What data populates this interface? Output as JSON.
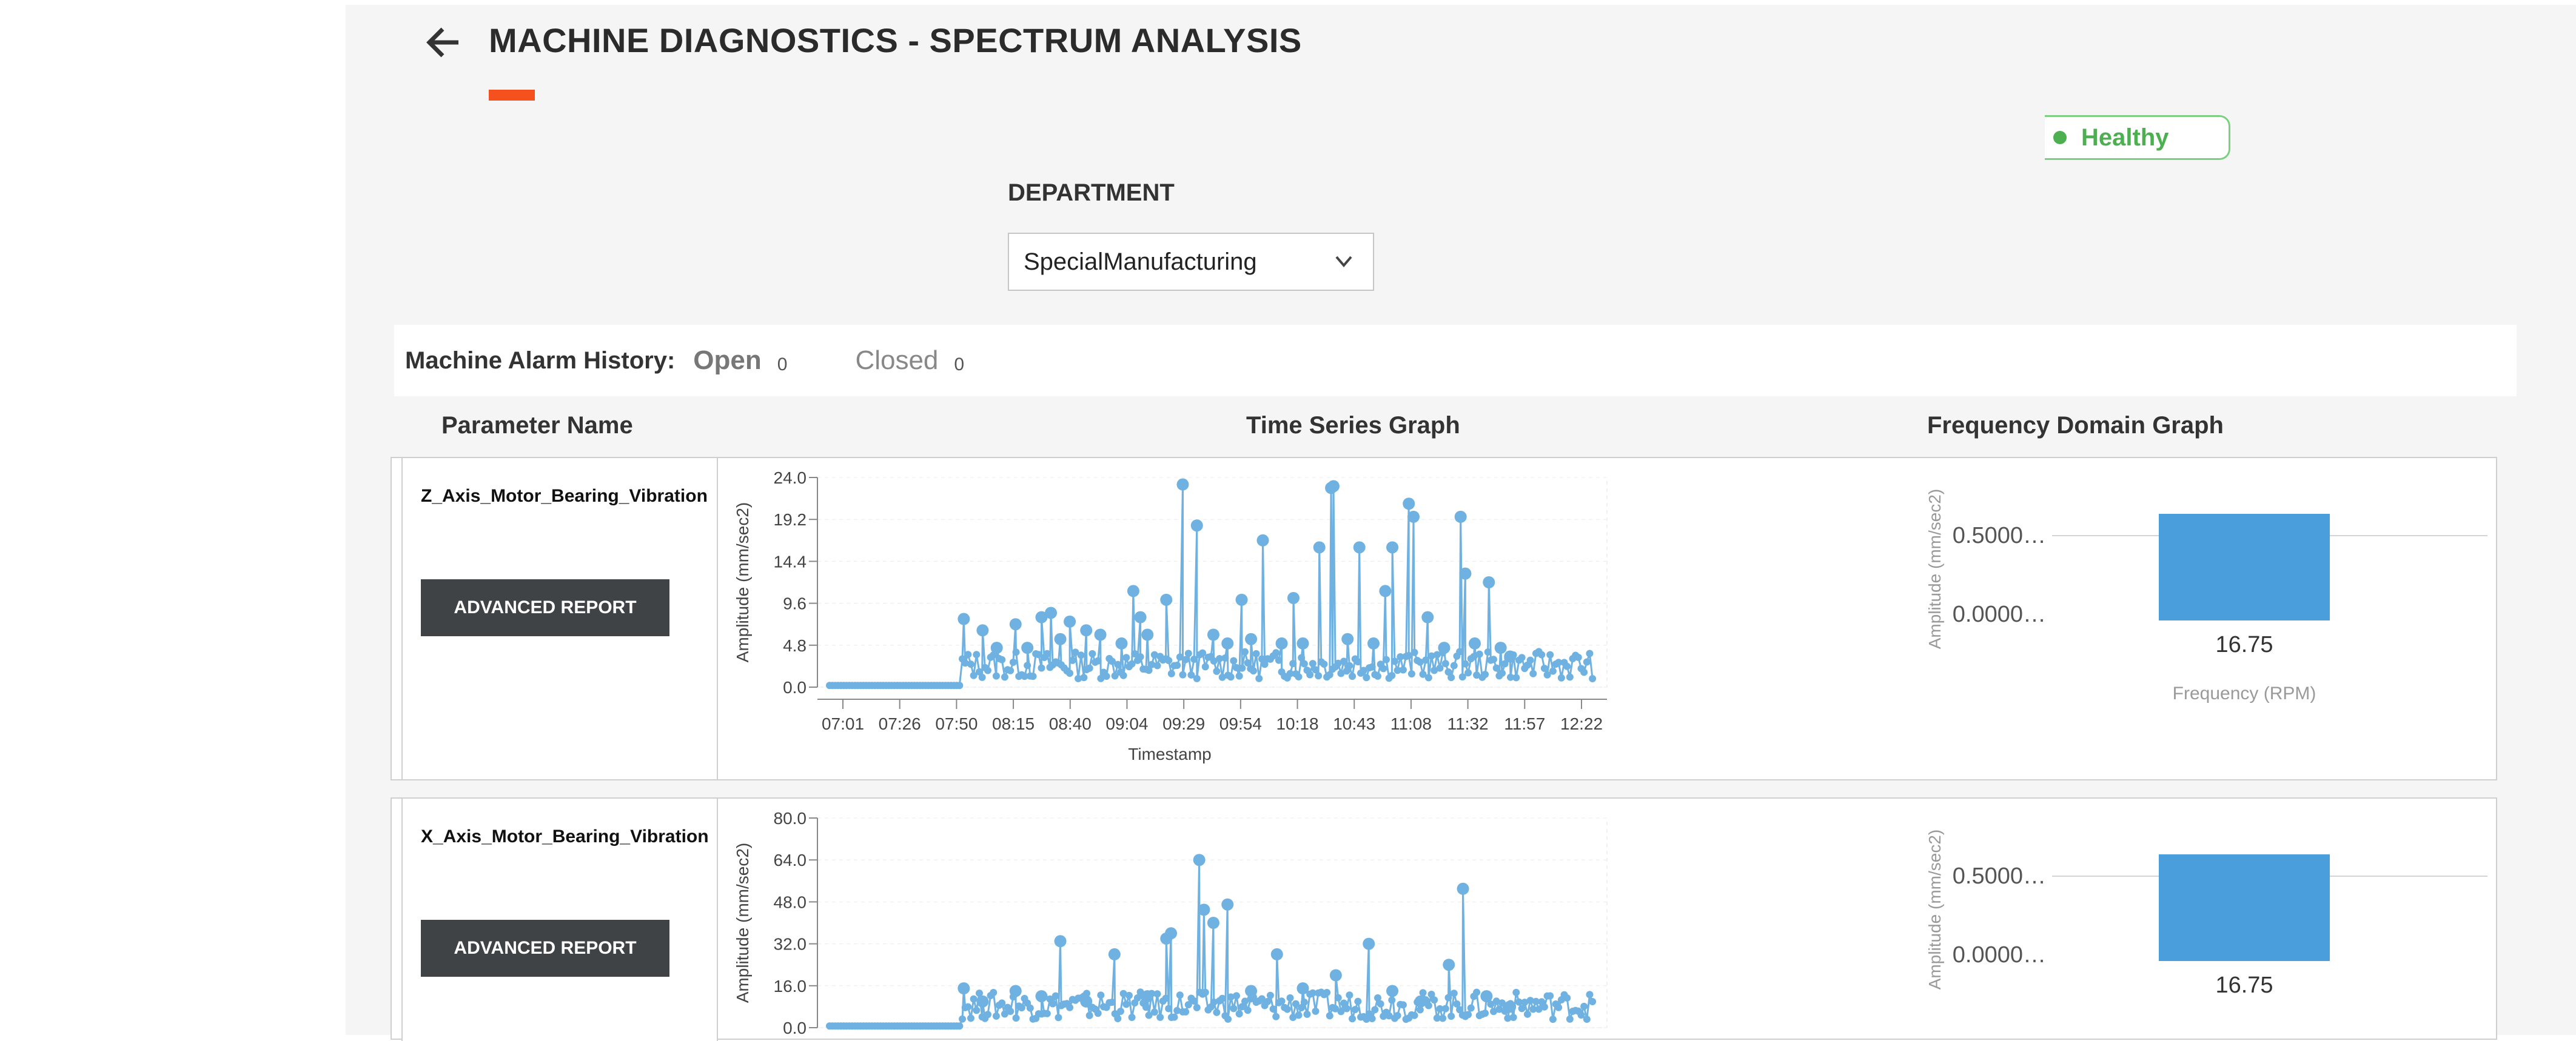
{
  "header": {
    "title": "MACHINE DIAGNOSTICS - SPECTRUM ANALYSIS",
    "back_icon": "arrow-left-icon",
    "accent_color": "#f4511e"
  },
  "status": {
    "label": "Healthy",
    "color": "#4caf50"
  },
  "department": {
    "label": "DEPARTMENT",
    "selected": "SpecialManufacturing",
    "icon": "chevron-down-icon"
  },
  "alarm_history": {
    "label": "Machine Alarm History:",
    "open_label": "Open",
    "open_count": "0",
    "closed_label": "Closed",
    "closed_count": "0"
  },
  "columns": {
    "parameter": "Parameter Name",
    "time_series": "Time Series Graph",
    "frequency": "Frequency Domain Graph"
  },
  "rows": [
    {
      "parameter": "Z_Axis_Motor_Bearing_Vibration",
      "button": "ADVANCED REPORT"
    },
    {
      "parameter": "X_Axis_Motor_Bearing_Vibration",
      "button": "ADVANCED REPORT"
    }
  ],
  "chart_data": [
    {
      "type": "line",
      "title": "",
      "xlabel": "Timestamp",
      "ylabel": "Amplitude (mm/sec2)",
      "ylim": [
        0,
        24
      ],
      "y_ticks": [
        "24.0",
        "19.2",
        "14.4",
        "9.6",
        "4.8",
        "0.0"
      ],
      "x_ticks": [
        "07:01",
        "07:26",
        "07:50",
        "08:15",
        "08:40",
        "09:04",
        "09:29",
        "09:54",
        "10:18",
        "10:43",
        "11:08",
        "11:32",
        "11:57",
        "12:22"
      ],
      "color": "#6fb1e0",
      "x_range_minutes": [
        421,
        746
      ],
      "baseline_until_minute": 477,
      "spikes": [
        {
          "x": 478,
          "y": 7.8
        },
        {
          "x": 486,
          "y": 6.5
        },
        {
          "x": 492,
          "y": 4.5
        },
        {
          "x": 500,
          "y": 7.2
        },
        {
          "x": 505,
          "y": 4.5
        },
        {
          "x": 511,
          "y": 8.0
        },
        {
          "x": 515,
          "y": 8.5
        },
        {
          "x": 519,
          "y": 5.5
        },
        {
          "x": 523,
          "y": 7.5
        },
        {
          "x": 530,
          "y": 6.5
        },
        {
          "x": 536,
          "y": 6.0
        },
        {
          "x": 545,
          "y": 5.0
        },
        {
          "x": 550,
          "y": 11.0
        },
        {
          "x": 553,
          "y": 8.0
        },
        {
          "x": 556,
          "y": 6.0
        },
        {
          "x": 564,
          "y": 10.0
        },
        {
          "x": 571,
          "y": 23.2
        },
        {
          "x": 577,
          "y": 18.5
        },
        {
          "x": 584,
          "y": 6.0
        },
        {
          "x": 590,
          "y": 5.0
        },
        {
          "x": 596,
          "y": 10.0
        },
        {
          "x": 600,
          "y": 5.5
        },
        {
          "x": 605,
          "y": 16.8
        },
        {
          "x": 613,
          "y": 5.0
        },
        {
          "x": 618,
          "y": 10.2
        },
        {
          "x": 622,
          "y": 5.0
        },
        {
          "x": 629,
          "y": 16.0
        },
        {
          "x": 634,
          "y": 22.8
        },
        {
          "x": 635,
          "y": 23.0
        },
        {
          "x": 641,
          "y": 5.5
        },
        {
          "x": 646,
          "y": 16.0
        },
        {
          "x": 652,
          "y": 5.0
        },
        {
          "x": 657,
          "y": 11.0
        },
        {
          "x": 660,
          "y": 16.0
        },
        {
          "x": 667,
          "y": 21.0
        },
        {
          "x": 669,
          "y": 19.5
        },
        {
          "x": 675,
          "y": 8.0
        },
        {
          "x": 682,
          "y": 4.5
        },
        {
          "x": 689,
          "y": 19.5
        },
        {
          "x": 691,
          "y": 13.0
        },
        {
          "x": 695,
          "y": 5.0
        },
        {
          "x": 701,
          "y": 12.0
        },
        {
          "x": 706,
          "y": 4.5
        },
        {
          "x": 710,
          "y": 3.5
        }
      ]
    },
    {
      "type": "line",
      "title": "",
      "xlabel": "",
      "ylabel": "Amplitude (mm/sec2)",
      "ylim": [
        0,
        80
      ],
      "y_ticks": [
        "80.0",
        "64.0",
        "48.0",
        "32.0",
        "16.0",
        "0.0"
      ],
      "color": "#6fb1e0",
      "x_range_minutes": [
        421,
        746
      ],
      "baseline_until_minute": 477,
      "spikes": [
        {
          "x": 478,
          "y": 15.0
        },
        {
          "x": 486,
          "y": 10.0
        },
        {
          "x": 500,
          "y": 14.0
        },
        {
          "x": 511,
          "y": 12.0
        },
        {
          "x": 519,
          "y": 33.0
        },
        {
          "x": 530,
          "y": 10.0
        },
        {
          "x": 542,
          "y": 28.0
        },
        {
          "x": 556,
          "y": 12.0
        },
        {
          "x": 564,
          "y": 34.0
        },
        {
          "x": 566,
          "y": 36.0
        },
        {
          "x": 578,
          "y": 64.0
        },
        {
          "x": 580,
          "y": 45.0
        },
        {
          "x": 584,
          "y": 40.0
        },
        {
          "x": 590,
          "y": 47.0
        },
        {
          "x": 600,
          "y": 14.0
        },
        {
          "x": 611,
          "y": 28.0
        },
        {
          "x": 622,
          "y": 15.0
        },
        {
          "x": 636,
          "y": 20.0
        },
        {
          "x": 650,
          "y": 32.0
        },
        {
          "x": 660,
          "y": 14.0
        },
        {
          "x": 672,
          "y": 10.0
        },
        {
          "x": 684,
          "y": 24.0
        },
        {
          "x": 690,
          "y": 53.0
        },
        {
          "x": 700,
          "y": 12.0
        },
        {
          "x": 710,
          "y": 8.0
        }
      ]
    },
    {
      "type": "bar",
      "categories": [
        "16.75"
      ],
      "values": [
        0.5
      ],
      "xlabel": "Frequency (RPM)",
      "ylabel": "Amplitude (mm/sec2)",
      "y_ticks": [
        "0.5000…",
        "0.0000…"
      ],
      "color": "#4a9edc"
    },
    {
      "type": "bar",
      "categories": [
        "16.75"
      ],
      "values": [
        0.5
      ],
      "xlabel": "",
      "ylabel": "Amplitude (mm/sec2)",
      "y_ticks": [
        "0.5000…",
        "0.0000…"
      ],
      "color": "#4a9edc"
    }
  ]
}
